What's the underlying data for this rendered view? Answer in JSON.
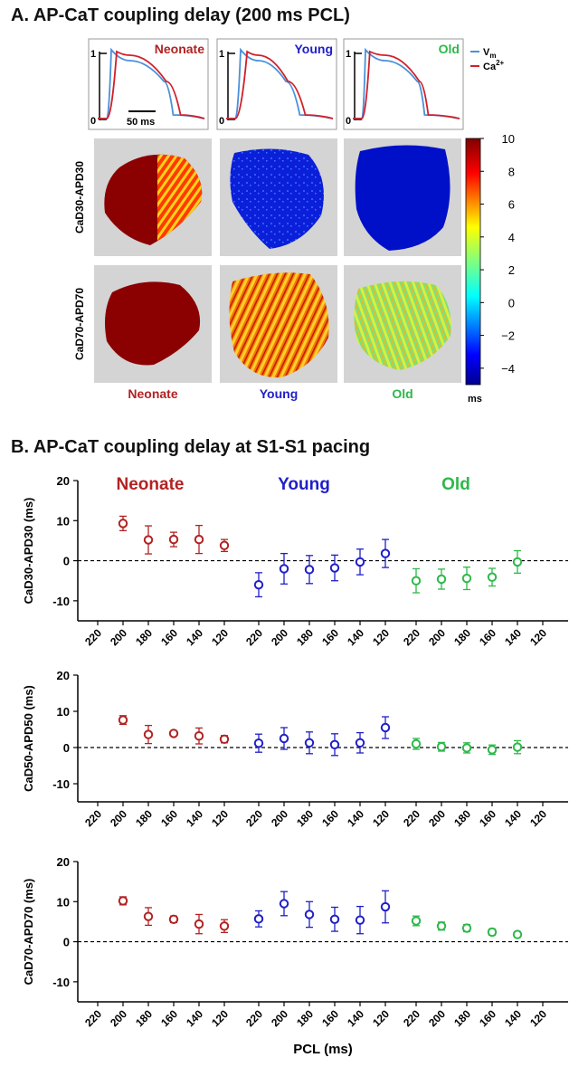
{
  "panel_a": {
    "title": "A. AP-CaT coupling delay (200 ms PCL)",
    "trace_legend": {
      "vm": "V",
      "vm_sub": "m",
      "ca": "Ca",
      "ca_sup": "2+"
    },
    "trace_axis": {
      "top": "1",
      "bottom": "0"
    },
    "scale_bar_label": "50 ms",
    "groups": [
      "Neonate",
      "Young",
      "Old"
    ],
    "row_labels": [
      "CaD30-APD30",
      "CaD70-APD70"
    ],
    "colorbar": {
      "ticks": [
        10,
        8,
        6,
        4,
        2,
        0,
        -2,
        -4
      ],
      "unit": "ms"
    }
  },
  "panel_b": {
    "title": "B. AP-CaT coupling delay at S1-S1 pacing",
    "xlabel": "PCL (ms)"
  },
  "colors": {
    "Neonate": "#b22222",
    "Young": "#1f1fc8",
    "Old": "#2eb84a",
    "vm_trace": "#4a90d9",
    "ca_trace": "#d0202a"
  },
  "chart_data": [
    {
      "type": "scatter",
      "ylabel": "CaD30-APD30 (ms)",
      "ylim": [
        -15,
        20
      ],
      "yticks": [
        20,
        10,
        0,
        -10
      ],
      "xtick_labels": [
        "220",
        "200",
        "180",
        "160",
        "140",
        "120",
        "220",
        "200",
        "180",
        "160",
        "140",
        "120",
        "220",
        "200",
        "180",
        "160",
        "140",
        "120"
      ],
      "reference_line": 0,
      "group_labels_shown": true,
      "series": [
        {
          "name": "Neonate",
          "x": [
            200,
            180,
            160,
            140,
            120
          ],
          "y": [
            9.3,
            5.2,
            5.3,
            5.3,
            3.8
          ],
          "err": [
            1.8,
            3.5,
            1.8,
            3.5,
            1.5
          ]
        },
        {
          "name": "Young",
          "x": [
            220,
            200,
            180,
            160,
            140,
            120
          ],
          "y": [
            -6,
            -2,
            -2.2,
            -1.8,
            -0.3,
            1.8
          ],
          "err": [
            3,
            3.8,
            3.5,
            3.2,
            3.2,
            3.5
          ]
        },
        {
          "name": "Old",
          "x": [
            220,
            200,
            180,
            160,
            140
          ],
          "y": [
            -5,
            -4.6,
            -4.4,
            -4.1,
            -0.3
          ],
          "err": [
            3,
            2.5,
            2.8,
            2.2,
            2.8
          ]
        }
      ]
    },
    {
      "type": "scatter",
      "ylabel": "CaD50-APD50 (ms)",
      "ylim": [
        -15,
        20
      ],
      "yticks": [
        20,
        10,
        0,
        -10
      ],
      "xtick_labels": [
        "220",
        "200",
        "180",
        "160",
        "140",
        "120",
        "220",
        "200",
        "180",
        "160",
        "140",
        "120",
        "220",
        "200",
        "180",
        "160",
        "140",
        "120"
      ],
      "reference_line": 0,
      "group_labels_shown": false,
      "series": [
        {
          "name": "Neonate",
          "x": [
            200,
            180,
            160,
            140,
            120
          ],
          "y": [
            7.6,
            3.6,
            3.9,
            3.2,
            2.3
          ],
          "err": [
            1.2,
            2.5,
            0.6,
            2.2,
            1.0
          ]
        },
        {
          "name": "Young",
          "x": [
            220,
            200,
            180,
            160,
            140,
            120
          ],
          "y": [
            1.2,
            2.5,
            1.3,
            0.8,
            1.3,
            5.5
          ],
          "err": [
            2.5,
            3,
            3,
            3,
            2.8,
            3
          ]
        },
        {
          "name": "Old",
          "x": [
            220,
            200,
            180,
            160,
            140
          ],
          "y": [
            1,
            0.2,
            -0.1,
            -0.6,
            0.1
          ],
          "err": [
            1.5,
            1.2,
            1.4,
            1.3,
            1.8
          ]
        }
      ]
    },
    {
      "type": "scatter",
      "ylabel": "CaD70-APD70 (ms)",
      "ylim": [
        -15,
        20
      ],
      "yticks": [
        20,
        10,
        0,
        -10
      ],
      "xtick_labels": [
        "220",
        "200",
        "180",
        "160",
        "140",
        "120",
        "220",
        "200",
        "180",
        "160",
        "140",
        "120",
        "220",
        "200",
        "180",
        "160",
        "140",
        "120"
      ],
      "reference_line": 0,
      "group_labels_shown": false,
      "series": [
        {
          "name": "Neonate",
          "x": [
            200,
            180,
            160,
            140,
            120
          ],
          "y": [
            10.2,
            6.3,
            5.6,
            4.4,
            3.9
          ],
          "err": [
            1.0,
            2.2,
            0.8,
            2.4,
            1.6
          ]
        },
        {
          "name": "Young",
          "x": [
            220,
            200,
            180,
            160,
            140,
            120
          ],
          "y": [
            5.7,
            9.5,
            6.8,
            5.6,
            5.4,
            8.7
          ],
          "err": [
            2.0,
            3.0,
            3.2,
            3.0,
            3.4,
            4.0
          ]
        },
        {
          "name": "Old",
          "x": [
            220,
            200,
            180,
            160,
            140
          ],
          "y": [
            5.2,
            3.9,
            3.4,
            2.4,
            1.8
          ],
          "err": [
            1.2,
            1.0,
            0.9,
            0.8,
            0.7
          ]
        }
      ]
    }
  ]
}
